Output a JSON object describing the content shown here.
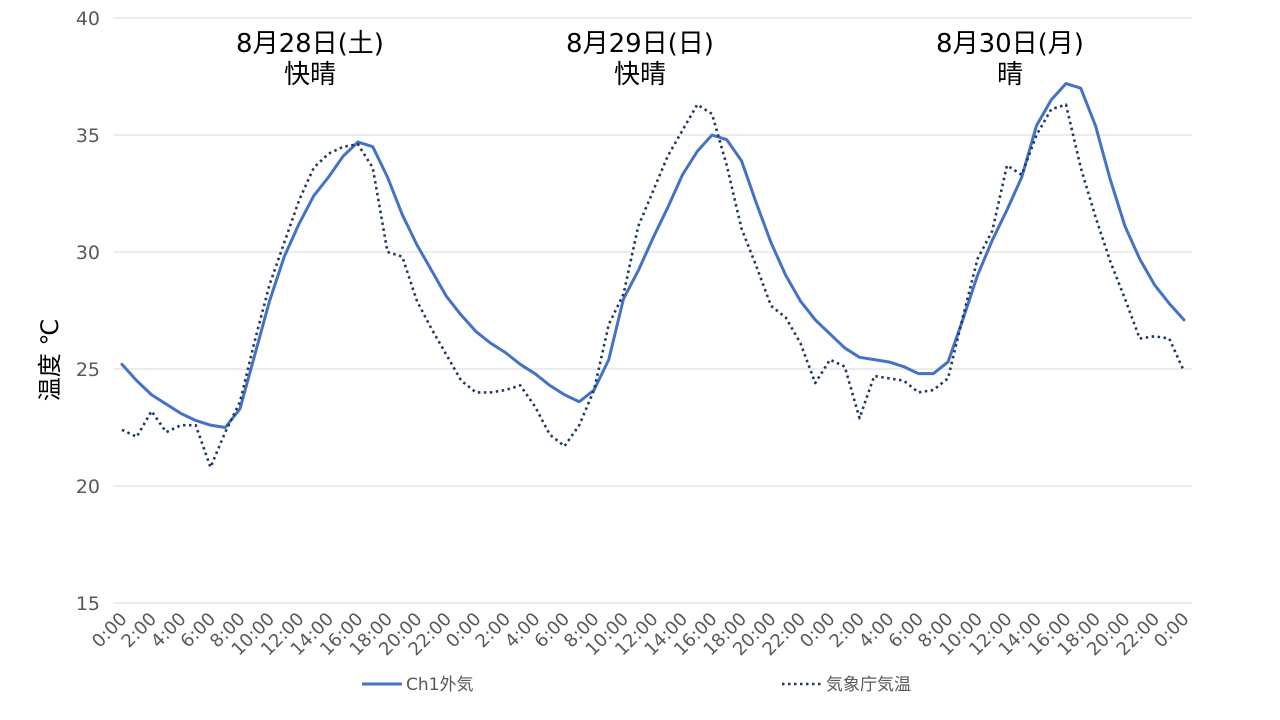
{
  "chart_data": {
    "type": "line",
    "ylabel": "温度 ℃",
    "ylim": [
      15,
      40
    ],
    "yticks": [
      15,
      20,
      25,
      30,
      35,
      40
    ],
    "grid": "horizontal",
    "legend_position": "bottom",
    "x": [
      "0:00",
      "1:00",
      "2:00",
      "3:00",
      "4:00",
      "5:00",
      "6:00",
      "7:00",
      "8:00",
      "9:00",
      "10:00",
      "11:00",
      "12:00",
      "13:00",
      "14:00",
      "15:00",
      "16:00",
      "17:00",
      "18:00",
      "19:00",
      "20:00",
      "21:00",
      "22:00",
      "23:00",
      "0:00",
      "1:00",
      "2:00",
      "3:00",
      "4:00",
      "5:00",
      "6:00",
      "7:00",
      "8:00",
      "9:00",
      "10:00",
      "11:00",
      "12:00",
      "13:00",
      "14:00",
      "15:00",
      "16:00",
      "17:00",
      "18:00",
      "19:00",
      "20:00",
      "21:00",
      "22:00",
      "23:00",
      "0:00",
      "1:00",
      "2:00",
      "3:00",
      "4:00",
      "5:00",
      "6:00",
      "7:00",
      "8:00",
      "9:00",
      "10:00",
      "11:00",
      "12:00",
      "13:00",
      "14:00",
      "15:00",
      "16:00",
      "17:00",
      "18:00",
      "19:00",
      "20:00",
      "21:00",
      "22:00",
      "23:00",
      "0:00"
    ],
    "x_tick_labels": [
      "0:00",
      "2:00",
      "4:00",
      "6:00",
      "8:00",
      "10:00",
      "12:00",
      "14:00",
      "16:00",
      "18:00",
      "20:00",
      "22:00",
      "0:00",
      "2:00",
      "4:00",
      "6:00",
      "8:00",
      "10:00",
      "12:00",
      "14:00",
      "16:00",
      "18:00",
      "20:00",
      "22:00",
      "0:00",
      "2:00",
      "4:00",
      "6:00",
      "8:00",
      "10:00",
      "12:00",
      "14:00",
      "16:00",
      "18:00",
      "20:00",
      "22:00",
      "0:00"
    ],
    "series": [
      {
        "name": "Ch1外気",
        "color": "#4472C4",
        "style": "solid",
        "values": [
          25.2,
          24.5,
          23.9,
          23.5,
          23.1,
          22.8,
          22.6,
          22.5,
          23.3,
          25.6,
          27.9,
          29.8,
          31.2,
          32.4,
          33.2,
          34.1,
          34.7,
          34.5,
          33.2,
          31.6,
          30.3,
          29.2,
          28.1,
          27.3,
          26.6,
          26.1,
          25.7,
          25.2,
          24.8,
          24.3,
          23.9,
          23.6,
          24.1,
          25.4,
          28.0,
          29.2,
          30.6,
          31.9,
          33.3,
          34.3,
          35.0,
          34.8,
          33.9,
          32.1,
          30.4,
          29.0,
          27.9,
          27.1,
          26.5,
          25.9,
          25.5,
          25.4,
          25.3,
          25.1,
          24.8,
          24.8,
          25.3,
          27.1,
          29.0,
          30.5,
          31.8,
          33.2,
          35.4,
          36.5,
          37.2,
          37.0,
          35.4,
          33.1,
          31.1,
          29.7,
          28.6,
          27.8,
          27.1
        ]
      },
      {
        "name": "気象庁気温",
        "color": "#203864",
        "style": "dotted",
        "values": [
          22.4,
          22.1,
          23.2,
          22.3,
          22.6,
          22.6,
          20.8,
          22.3,
          23.6,
          26.2,
          28.6,
          30.4,
          32.2,
          33.6,
          34.2,
          34.5,
          34.6,
          33.6,
          30.0,
          29.8,
          27.9,
          26.7,
          25.6,
          24.5,
          24.0,
          24.0,
          24.1,
          24.3,
          23.4,
          22.2,
          21.7,
          22.6,
          24.1,
          26.9,
          28.2,
          31.1,
          32.6,
          34.1,
          35.2,
          36.3,
          35.9,
          33.7,
          31.0,
          29.4,
          27.7,
          27.2,
          26.1,
          24.4,
          25.4,
          25.1,
          22.9,
          24.7,
          24.6,
          24.5,
          24.0,
          24.1,
          24.6,
          27.2,
          29.7,
          30.9,
          33.7,
          33.3,
          35.0,
          36.1,
          36.3,
          33.6,
          31.5,
          29.6,
          28.0,
          26.3,
          26.4,
          26.3,
          24.9
        ]
      }
    ],
    "annotations": [
      {
        "date": "8月28日(土)",
        "weather": "快晴"
      },
      {
        "date": "8月29日(日)",
        "weather": "快晴"
      },
      {
        "date": "8月30日(月)",
        "weather": "晴"
      }
    ]
  }
}
